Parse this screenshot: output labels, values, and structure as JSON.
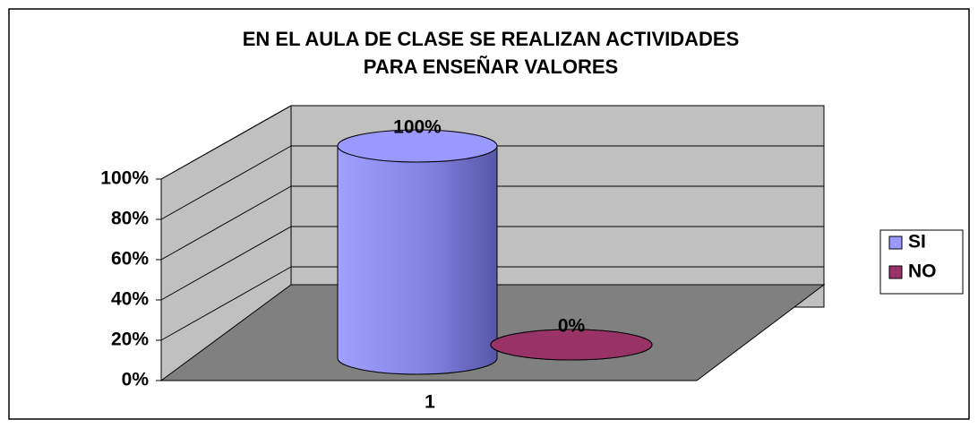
{
  "chart_data": {
    "type": "bar3d",
    "title": [
      "EN EL AULA DE CLASE SE REALIZAN ACTIVIDADES",
      "PARA ENSEÑAR VALORES"
    ],
    "categories": [
      "1"
    ],
    "series": [
      {
        "name": "SI",
        "color": "#9999ff",
        "values": [
          100
        ],
        "value_labels": [
          "100%"
        ]
      },
      {
        "name": "NO",
        "color": "#993366",
        "values": [
          0
        ],
        "value_labels": [
          "0%"
        ]
      }
    ],
    "ylim": [
      0,
      100
    ],
    "yticks": [
      {
        "value": 0,
        "label": "0%"
      },
      {
        "value": 20,
        "label": "20%"
      },
      {
        "value": 40,
        "label": "40%"
      },
      {
        "value": 60,
        "label": "60%"
      },
      {
        "value": 80,
        "label": "80%"
      },
      {
        "value": 100,
        "label": "100%"
      }
    ],
    "grid": true,
    "legend": "right"
  }
}
